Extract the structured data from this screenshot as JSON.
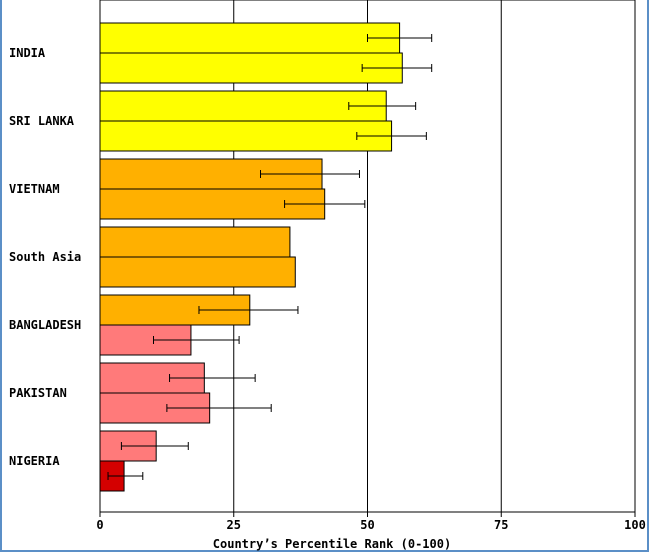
{
  "chart_data": {
    "type": "bar",
    "orientation": "horizontal",
    "xlabel": "Country’s Percentile Rank (0-100)",
    "xlim": [
      0,
      100
    ],
    "ticks": [
      "0",
      "25",
      "50",
      "75",
      "100"
    ],
    "grid": "vertical",
    "categories": [
      {
        "label": "INDIA",
        "bars": [
          {
            "value": 56,
            "err_low": 50,
            "err_high": 62,
            "color": "#ffff00"
          },
          {
            "value": 56.5,
            "err_low": 49,
            "err_high": 62,
            "color": "#ffff00"
          }
        ]
      },
      {
        "label": "SRI LANKA",
        "bars": [
          {
            "value": 53.5,
            "err_low": 46.5,
            "err_high": 59,
            "color": "#ffff00"
          },
          {
            "value": 54.5,
            "err_low": 48,
            "err_high": 61,
            "color": "#ffff00"
          }
        ]
      },
      {
        "label": "VIETNAM",
        "bars": [
          {
            "value": 41.5,
            "err_low": 30,
            "err_high": 48.5,
            "color": "#ffb000"
          },
          {
            "value": 42,
            "err_low": 34.5,
            "err_high": 49.5,
            "color": "#ffb000"
          }
        ]
      },
      {
        "label": "South Asia",
        "bars": [
          {
            "value": 35.5,
            "err_low": null,
            "err_high": null,
            "color": "#ffb000"
          },
          {
            "value": 36.5,
            "err_low": null,
            "err_high": null,
            "color": "#ffb000"
          }
        ]
      },
      {
        "label": "BANGLADESH",
        "bars": [
          {
            "value": 28,
            "err_low": 18.5,
            "err_high": 37,
            "color": "#ffb000"
          },
          {
            "value": 17,
            "err_low": 10,
            "err_high": 26,
            "color": "#ff7a7a"
          }
        ]
      },
      {
        "label": "PAKISTAN",
        "bars": [
          {
            "value": 19.5,
            "err_low": 13,
            "err_high": 29,
            "color": "#ff7a7a"
          },
          {
            "value": 20.5,
            "err_low": 12.5,
            "err_high": 32,
            "color": "#ff7a7a"
          }
        ]
      },
      {
        "label": "NIGERIA",
        "bars": [
          {
            "value": 10.5,
            "err_low": 4,
            "err_high": 16.5,
            "color": "#ff7a7a"
          },
          {
            "value": 4.5,
            "err_low": 1.5,
            "err_high": 8,
            "color": "#d40000"
          }
        ]
      }
    ]
  }
}
